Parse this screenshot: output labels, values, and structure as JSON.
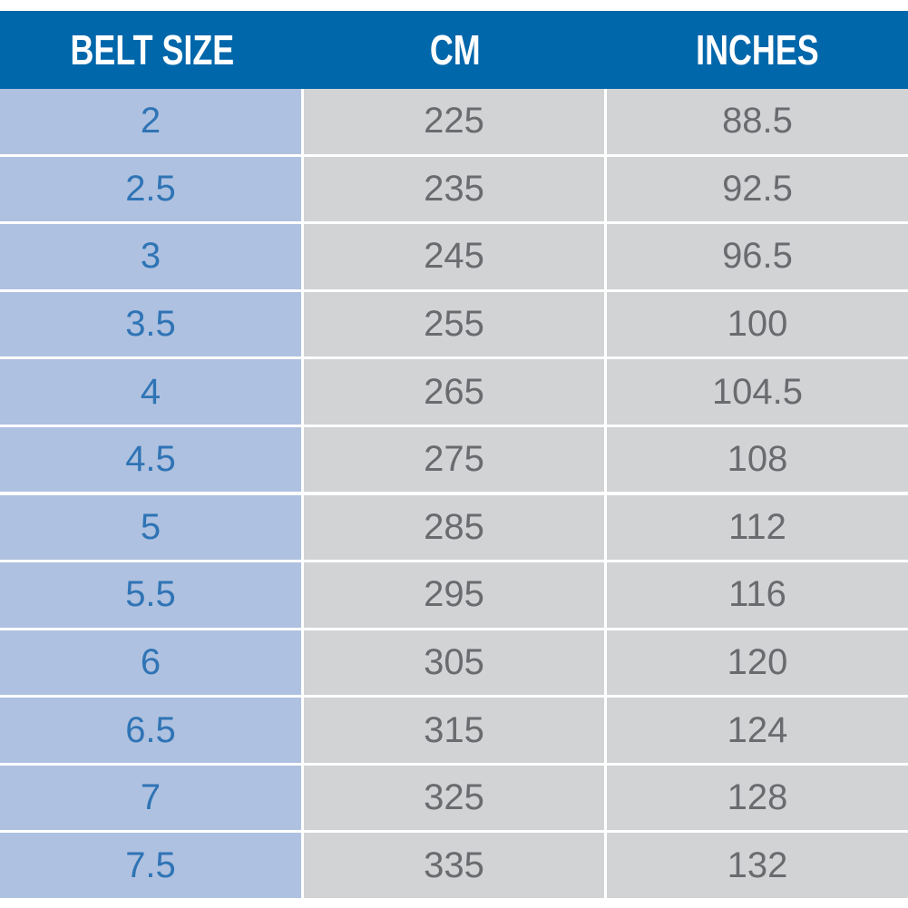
{
  "table": {
    "header": [
      "BELT SIZE",
      "CM",
      "INCHES"
    ],
    "rows": [
      [
        "2",
        "225",
        "88.5"
      ],
      [
        "2.5",
        "235",
        "92.5"
      ],
      [
        "3",
        "245",
        "96.5"
      ],
      [
        "3.5",
        "255",
        "100"
      ],
      [
        "4",
        "265",
        "104.5"
      ],
      [
        "4.5",
        "275",
        "108"
      ],
      [
        "5",
        "285",
        "112"
      ],
      [
        "5.5",
        "295",
        "116"
      ],
      [
        "6",
        "305",
        "120"
      ],
      [
        "6.5",
        "315",
        "124"
      ],
      [
        "7",
        "325",
        "128"
      ],
      [
        "7.5",
        "335",
        "132"
      ]
    ]
  }
}
